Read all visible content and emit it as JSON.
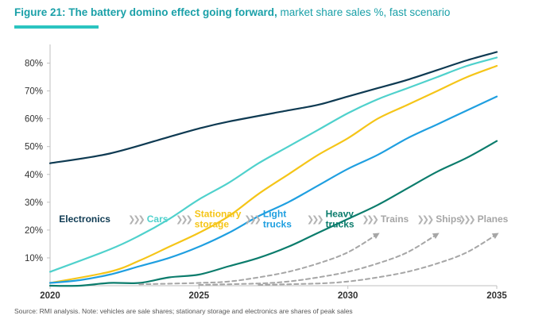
{
  "header": {
    "title_bold": "Figure 21: The battery domino effect going forward,",
    "title_rest": " market share sales %, fast scenario"
  },
  "footer": {
    "source": "Source: RMI analysis. Note: vehicles are sale shares; stationary storage and electronics are shares of peak sales"
  },
  "chart_data": {
    "type": "line",
    "title": "The battery domino effect going forward",
    "subtitle": "market share sales %, fast scenario",
    "xlabel": "",
    "ylabel": "",
    "xlim": [
      2020,
      2035
    ],
    "ylim": [
      0,
      85
    ],
    "x_ticks": [
      {
        "value": 2020,
        "label": "2020"
      },
      {
        "value": 2025,
        "label": "2025"
      },
      {
        "value": 2030,
        "label": "2030"
      },
      {
        "value": 2035,
        "label": "2035"
      }
    ],
    "y_ticks": [
      {
        "value": 10,
        "label": "10%"
      },
      {
        "value": 20,
        "label": "20%"
      },
      {
        "value": 30,
        "label": "30%"
      },
      {
        "value": 40,
        "label": "40%"
      },
      {
        "value": 50,
        "label": "50%"
      },
      {
        "value": 60,
        "label": "60%"
      },
      {
        "value": 70,
        "label": "70%"
      },
      {
        "value": 80,
        "label": "80%"
      }
    ],
    "series": [
      {
        "name": "Electronics",
        "color": "#0e3a52",
        "dashed": false,
        "x": [
          2020,
          2022,
          2024,
          2025,
          2026,
          2028,
          2029,
          2030,
          2031,
          2032,
          2033,
          2034,
          2035
        ],
        "y": [
          44,
          47.5,
          53.5,
          56.5,
          59,
          63,
          65,
          68,
          71,
          74,
          77.5,
          81,
          84
        ]
      },
      {
        "name": "Cars",
        "color": "#4fd1cc",
        "dashed": false,
        "x": [
          2020,
          2022,
          2023,
          2024,
          2025,
          2026,
          2027,
          2028,
          2029,
          2030,
          2031,
          2032,
          2033,
          2034,
          2035
        ],
        "y": [
          5,
          13,
          18,
          24,
          31,
          37,
          44,
          50,
          56,
          62,
          67,
          71,
          75,
          79,
          82
        ]
      },
      {
        "name": "Stationary storage",
        "color": "#f5c518",
        "dashed": false,
        "x": [
          2020,
          2022,
          2023,
          2024,
          2025,
          2026,
          2027,
          2028,
          2029,
          2030,
          2031,
          2032,
          2033,
          2034,
          2035
        ],
        "y": [
          1,
          5,
          9,
          14,
          19,
          25,
          33,
          40,
          47,
          53,
          60,
          65,
          70,
          75,
          79
        ]
      },
      {
        "name": "Light trucks",
        "color": "#1f9fe0",
        "dashed": false,
        "x": [
          2020,
          2021,
          2022,
          2023,
          2024,
          2025,
          2026,
          2027,
          2028,
          2029,
          2030,
          2031,
          2032,
          2033,
          2034,
          2035
        ],
        "y": [
          1,
          2,
          4,
          7,
          10,
          14,
          19,
          25,
          30,
          36,
          42,
          47,
          53,
          58,
          63,
          68
        ]
      },
      {
        "name": "Heavy trucks",
        "color": "#0b7c6c",
        "dashed": false,
        "x": [
          2020,
          2021,
          2022,
          2023,
          2024,
          2025,
          2026,
          2027,
          2028,
          2029,
          2030,
          2031,
          2032,
          2033,
          2034,
          2035
        ],
        "y": [
          0,
          0,
          1,
          1,
          3,
          4,
          7,
          10,
          14,
          19,
          24,
          29,
          35,
          41,
          46,
          52
        ]
      },
      {
        "name": "Trains",
        "color": "#a6a6a6",
        "dashed": true,
        "x": [
          2023,
          2025,
          2026,
          2027,
          2028,
          2029,
          2030,
          2031
        ],
        "y": [
          0.5,
          1,
          1.5,
          3,
          5,
          8,
          12,
          18.5
        ]
      },
      {
        "name": "Ships",
        "color": "#a6a6a6",
        "dashed": true,
        "x": [
          2025,
          2027,
          2028,
          2029,
          2030,
          2031,
          2032,
          2033
        ],
        "y": [
          0.3,
          0.8,
          1.5,
          3,
          5,
          8,
          12,
          18.5
        ]
      },
      {
        "name": "Planes",
        "color": "#a6a6a6",
        "dashed": true,
        "x": [
          2027,
          2029,
          2030,
          2031,
          2032,
          2033,
          2034,
          2035
        ],
        "y": [
          0.3,
          0.8,
          1.5,
          3,
          5,
          8,
          12,
          18.5
        ]
      }
    ],
    "domino_labels": [
      {
        "text": "Electronics",
        "color": "#0e3a52",
        "x": 2020.3,
        "y": 24,
        "align": "start",
        "arrows": false
      },
      {
        "text": "Cars",
        "color": "#4fd1cc",
        "x": 2023.25,
        "y": 24,
        "align": "start",
        "arrows": true
      },
      {
        "text": "Stationary\nstorage",
        "color": "#f5c518",
        "x": 2024.85,
        "y": 24,
        "align": "start",
        "arrows": true
      },
      {
        "text": "Light\ntrucks",
        "color": "#1f9fe0",
        "x": 2027.15,
        "y": 24,
        "align": "start",
        "arrows": true
      },
      {
        "text": "Heavy\ntrucks",
        "color": "#0b7c6c",
        "x": 2029.25,
        "y": 24,
        "align": "start",
        "arrows": true
      },
      {
        "text": "Trains",
        "color": "#a6a6a6",
        "x": 2031.1,
        "y": 24,
        "align": "start",
        "arrows": true
      },
      {
        "text": "Ships",
        "color": "#a6a6a6",
        "x": 2032.95,
        "y": 24,
        "align": "start",
        "arrows": true
      },
      {
        "text": "Planes",
        "color": "#a6a6a6",
        "x": 2034.35,
        "y": 24,
        "align": "start",
        "arrows": true
      }
    ],
    "arrow_symbol": "❯❯❯",
    "grid": false,
    "legend": "inline"
  }
}
